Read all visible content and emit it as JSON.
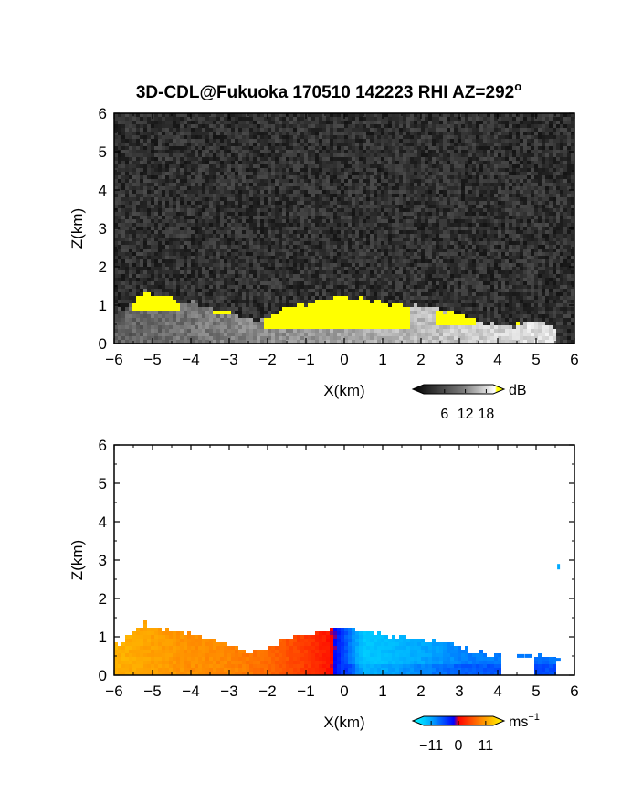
{
  "title": "3D-CDL@Fukuoka 170510 142223 RHI AZ=292",
  "title_superscript": "o",
  "chart_data": [
    {
      "type": "heatmap",
      "quantity": "reflectivity",
      "xlabel": "X(km)",
      "ylabel": "Z(km)",
      "xlim": [
        -6,
        6
      ],
      "ylim": [
        0,
        6
      ],
      "xticks": [
        "-6",
        "-5",
        "-4",
        "-3",
        "-2",
        "-1",
        "0",
        "1",
        "2",
        "3",
        "4",
        "5",
        "6"
      ],
      "yticks": [
        "0",
        "1",
        "2",
        "3",
        "4",
        "5",
        "6"
      ],
      "background": "noise",
      "colorbar": {
        "ticks": [
          "6",
          "12",
          "18"
        ],
        "tick_values": [
          6,
          12,
          18
        ],
        "range": [
          0,
          20
        ],
        "unit": "dB"
      },
      "echo_top_km": [
        [
          -6.0,
          0.8
        ],
        [
          -5.6,
          1.0
        ],
        [
          -5.2,
          1.35
        ],
        [
          -4.8,
          1.25
        ],
        [
          -4.4,
          1.15
        ],
        [
          -4.0,
          1.1
        ],
        [
          -3.6,
          0.95
        ],
        [
          -3.2,
          0.9
        ],
        [
          -2.8,
          0.75
        ],
        [
          -2.4,
          0.65
        ],
        [
          -2.0,
          0.7
        ],
        [
          -1.6,
          0.95
        ],
        [
          -1.2,
          1.05
        ],
        [
          -0.8,
          1.1
        ],
        [
          -0.4,
          1.2
        ],
        [
          0.0,
          1.25
        ],
        [
          0.4,
          1.2
        ],
        [
          0.8,
          1.1
        ],
        [
          1.2,
          1.05
        ],
        [
          1.6,
          1.0
        ],
        [
          2.0,
          0.95
        ],
        [
          2.4,
          0.9
        ],
        [
          2.8,
          0.85
        ],
        [
          3.2,
          0.7
        ],
        [
          3.6,
          0.6
        ],
        [
          4.0,
          0.55
        ],
        [
          4.4,
          0.5
        ],
        [
          4.8,
          0.55
        ],
        [
          5.2,
          0.55
        ],
        [
          5.5,
          0.45
        ]
      ],
      "strong_regions": [
        {
          "x": [
            -2.1,
            1.7
          ],
          "z": [
            0.4,
            1.25
          ]
        },
        {
          "x": [
            -5.5,
            -4.3
          ],
          "z": [
            0.85,
            1.3
          ]
        },
        {
          "x": [
            -3.4,
            -2.8
          ],
          "z": [
            0.8,
            0.95
          ]
        },
        {
          "x": [
            2.4,
            3.4
          ],
          "z": [
            0.5,
            0.85
          ]
        },
        {
          "x": [
            4.3,
            4.6
          ],
          "z": [
            0.45,
            0.6
          ]
        }
      ]
    },
    {
      "type": "heatmap",
      "quantity": "doppler_velocity",
      "xlabel": "X(km)",
      "ylabel": "Z(km)",
      "xlim": [
        -6,
        6
      ],
      "ylim": [
        0,
        6
      ],
      "xticks": [
        "-6",
        "-5",
        "-4",
        "-3",
        "-2",
        "-1",
        "0",
        "1",
        "2",
        "3",
        "4",
        "5",
        "6"
      ],
      "yticks": [
        "0",
        "1",
        "2",
        "3",
        "4",
        "5",
        "6"
      ],
      "background": "white",
      "colorbar": {
        "ticks": [
          "−11",
          "0",
          "11"
        ],
        "tick_values": [
          -11,
          0,
          11
        ],
        "range": [
          -14,
          14
        ],
        "unit": "ms",
        "unit_superscript": "−1"
      },
      "velocity_by_x": [
        [
          -6.0,
          9.5
        ],
        [
          -5.0,
          8.5
        ],
        [
          -4.0,
          7.5
        ],
        [
          -3.0,
          7.0
        ],
        [
          -2.0,
          5.5
        ],
        [
          -1.0,
          3.0
        ],
        [
          -0.4,
          1.0
        ],
        [
          0.0,
          -4.0
        ],
        [
          0.5,
          -10.0
        ],
        [
          1.0,
          -9.5
        ],
        [
          2.0,
          -8.0
        ],
        [
          3.0,
          -6.5
        ],
        [
          4.0,
          -6.0
        ],
        [
          5.5,
          -5.5
        ]
      ],
      "isolated_returns": [
        {
          "x": 5.55,
          "z": 2.9
        }
      ]
    }
  ]
}
